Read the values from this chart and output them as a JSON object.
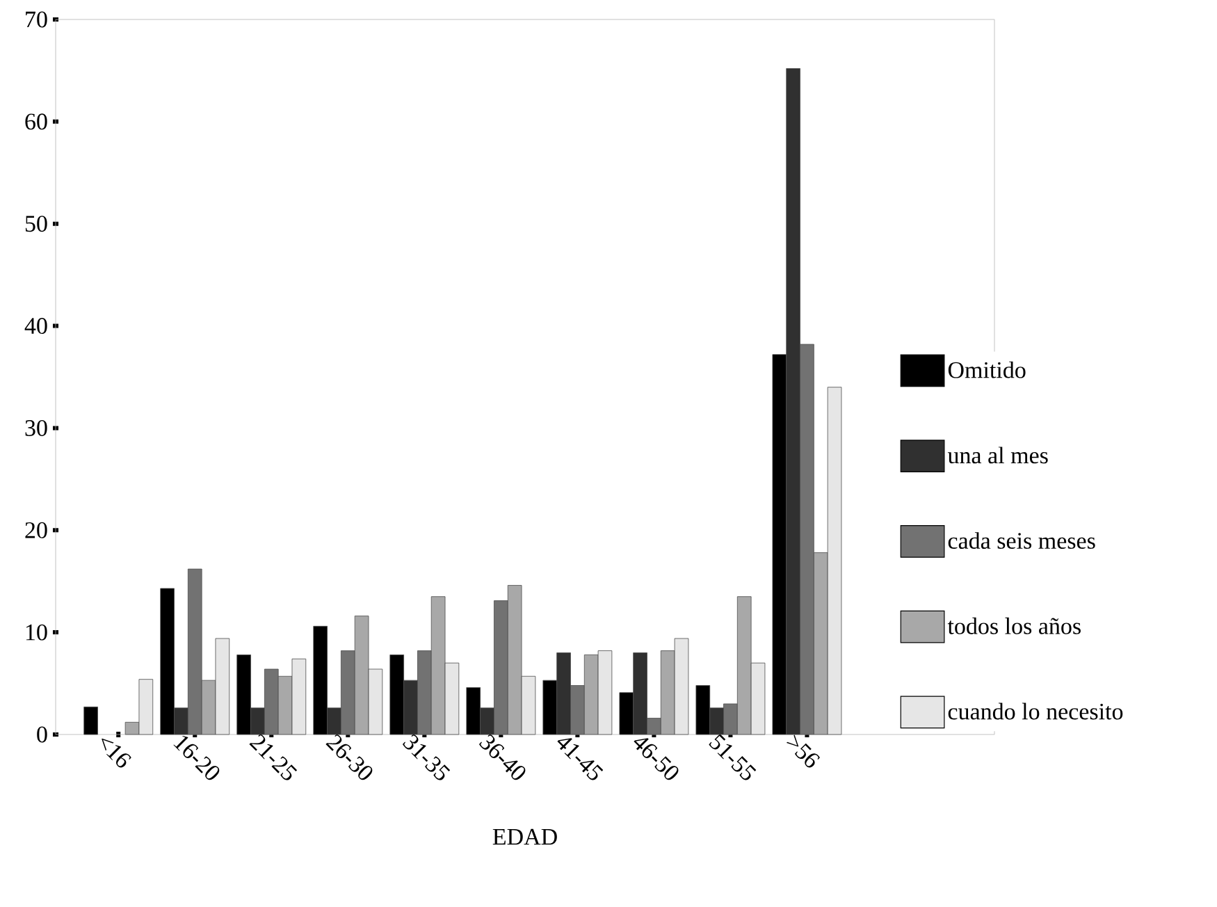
{
  "chart_data": {
    "type": "bar",
    "xlabel": "EDAD",
    "categories": [
      "<16",
      "16-20",
      "21-25",
      "26-30",
      "31-35",
      "36-40",
      "41-45",
      "46-50",
      "51-55",
      ">56"
    ],
    "series": [
      {
        "name": "Omitido",
        "color": "#000000",
        "values": [
          2.7,
          14.3,
          7.8,
          10.6,
          7.8,
          4.6,
          5.3,
          4.1,
          4.8,
          37.2
        ]
      },
      {
        "name": "una al mes",
        "color": "#303030",
        "values": [
          null,
          2.6,
          2.6,
          2.6,
          5.3,
          2.6,
          8.0,
          8.0,
          2.6,
          65.2
        ]
      },
      {
        "name": "cada seis meses",
        "color": "#727272",
        "values": [
          null,
          16.2,
          6.4,
          8.2,
          8.2,
          13.1,
          4.8,
          1.6,
          3.0,
          38.2
        ]
      },
      {
        "name": "todos los años",
        "color": "#a8a8a8",
        "values": [
          1.2,
          5.3,
          5.7,
          11.6,
          13.5,
          14.6,
          7.8,
          8.2,
          13.5,
          17.8
        ]
      },
      {
        "name": "cuando lo necesito",
        "color": "#e6e6e6",
        "values": [
          5.4,
          9.4,
          7.4,
          6.4,
          7.0,
          5.7,
          8.2,
          9.4,
          7.0,
          34.0
        ]
      }
    ],
    "ylim": [
      0,
      70
    ],
    "yticks": [
      0,
      10,
      20,
      30,
      40,
      50,
      60,
      70
    ],
    "grid": false,
    "legend": "right"
  }
}
